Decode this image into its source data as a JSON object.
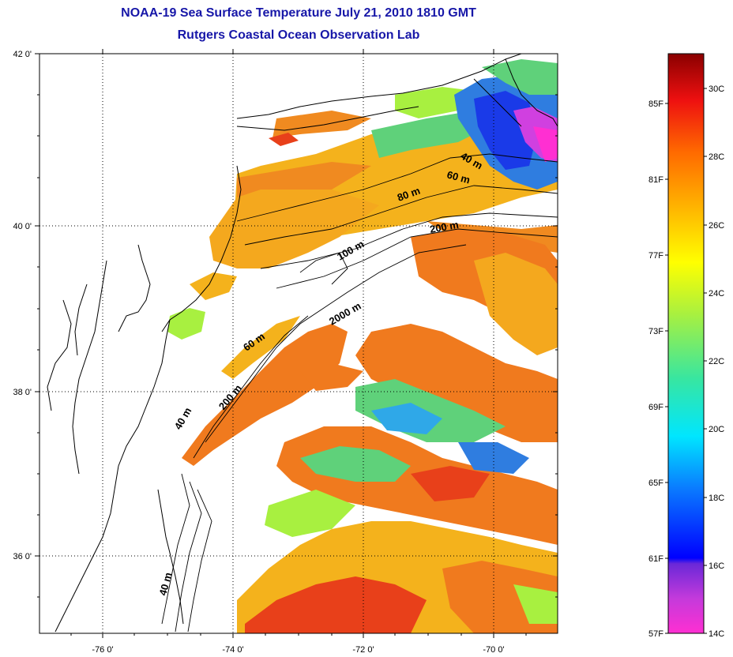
{
  "title_line1": "NOAA-19 Sea Surface Temperature July 21, 2010 1810 GMT",
  "title_line2": "Rutgers Coastal Ocean Observation Lab",
  "lat_labels": [
    "42 0'",
    "40 0'",
    "38 0'",
    "36 0'"
  ],
  "lon_labels": [
    "-76 0'",
    "-74 0'",
    "-72 0'",
    "-70 0'"
  ],
  "depth_labels": [
    "40 m",
    "60 m",
    "80 m",
    "200 m",
    "100 m",
    "2000 m",
    "60 m",
    "200 m",
    "40 m",
    "40 m"
  ],
  "colorbar": {
    "fahrenheit": [
      "85F",
      "81F",
      "77F",
      "73F",
      "69F",
      "65F",
      "61F",
      "57F"
    ],
    "celsius": [
      "30C",
      "28C",
      "26C",
      "24C",
      "22C",
      "20C",
      "18C",
      "16C",
      "14C"
    ]
  },
  "colors": {
    "title": "#1717a8",
    "land_outline": "#000000",
    "warm": "#f07a1e",
    "hot": "#e8401a",
    "mid": "#f4b21c",
    "cool": "#5fd17a",
    "cold": "#2f7de0",
    "coldest": "#ff2fd2"
  }
}
